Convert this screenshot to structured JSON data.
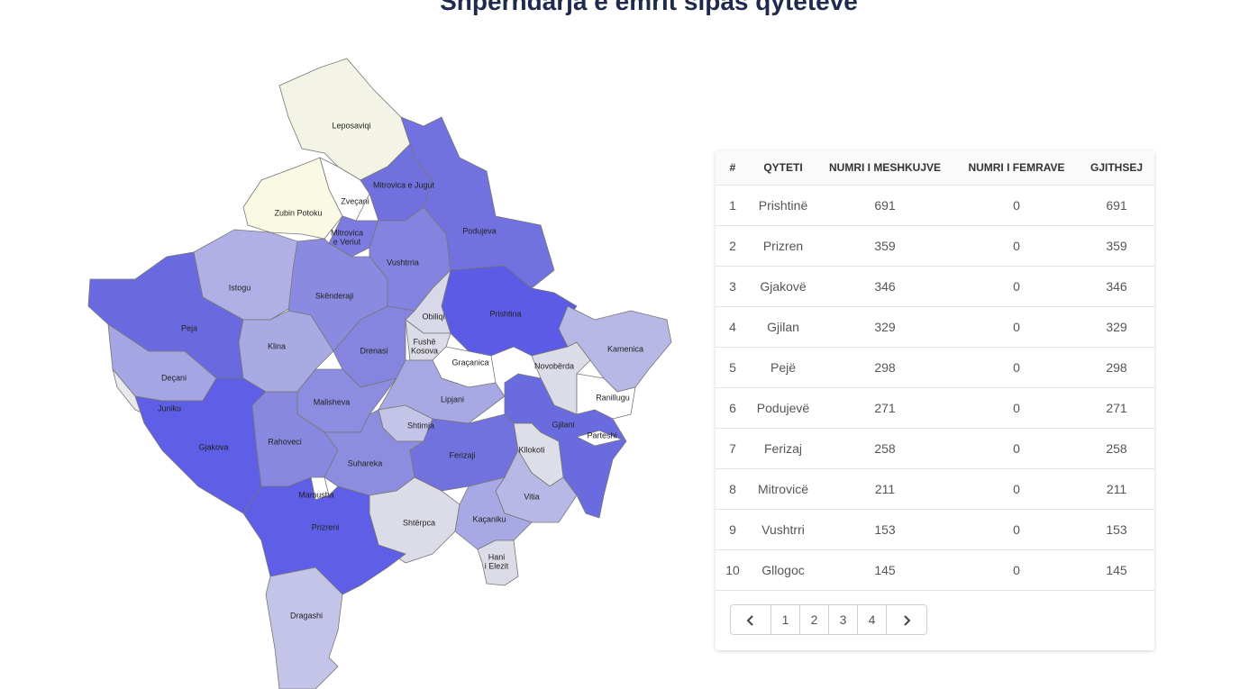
{
  "header": {
    "title": "Shpërndarja e emrit sipas qyteteve"
  },
  "map": {
    "regions": [
      {
        "label": [
          "Leposaviqi"
        ],
        "color": "#f3f4e6"
      },
      {
        "label": [
          "Zubin Potoku"
        ],
        "color": "#fafae4"
      },
      {
        "label": [
          "Zveçani"
        ],
        "color": "#ffffff"
      },
      {
        "label": [
          "Mitrovica e Jugut"
        ],
        "color": "#7070de"
      },
      {
        "label": [
          "Mitrovica",
          "e Veriut"
        ],
        "color": "#7b7be0"
      },
      {
        "label": [
          "Podujeva"
        ],
        "color": "#7171e0"
      },
      {
        "label": [
          "Istogu"
        ],
        "color": "#b0b0e6"
      },
      {
        "label": [
          "Skënderaji"
        ],
        "color": "#8a8ae0"
      },
      {
        "label": [
          "Vushtrria"
        ],
        "color": "#8383e0"
      },
      {
        "label": [
          "Prishtina"
        ],
        "color": "#5b5be6"
      },
      {
        "label": [
          "Obiliqi"
        ],
        "color": "#d8d8e8"
      },
      {
        "label": [
          "Peja"
        ],
        "color": "#6a6ae0"
      },
      {
        "label": [
          "Klina"
        ],
        "color": "#a9a9e4"
      },
      {
        "label": [
          "Drenasi"
        ],
        "color": "#8585e0"
      },
      {
        "label": [
          "Fushë",
          "Kosova"
        ],
        "color": "#dcdce8"
      },
      {
        "label": [
          "Graçanica"
        ],
        "color": "#ffffff"
      },
      {
        "label": [
          "Kamenica"
        ],
        "color": "#b8b8e6"
      },
      {
        "label": [
          "Novobërda"
        ],
        "color": "#dcdce8"
      },
      {
        "label": [
          "Deçani"
        ],
        "color": "#a5a5e4"
      },
      {
        "label": [
          "Juniku"
        ],
        "color": "#e8e8ee"
      },
      {
        "label": [
          "Malisheva"
        ],
        "color": "#8c8ce0"
      },
      {
        "label": [
          "Lipjani"
        ],
        "color": "#a8a8e4"
      },
      {
        "label": [
          "Ranillugu"
        ],
        "color": "#ffffff"
      },
      {
        "label": [
          "Gjilani"
        ],
        "color": "#6b6be0"
      },
      {
        "label": [
          "Parteshi"
        ],
        "color": "#ffffff"
      },
      {
        "label": [
          "Shtimja"
        ],
        "color": "#c4c4e8"
      },
      {
        "label": [
          "Gjakova"
        ],
        "color": "#5e5ee6"
      },
      {
        "label": [
          "Rahoveci"
        ],
        "color": "#8888e0"
      },
      {
        "label": [
          "Kllokoti"
        ],
        "color": "#dedee8"
      },
      {
        "label": [
          "Ferizaji"
        ],
        "color": "#7272de"
      },
      {
        "label": [
          "Suhareka"
        ],
        "color": "#8d8de0"
      },
      {
        "label": [
          "Vitia"
        ],
        "color": "#b8b8e6"
      },
      {
        "label": [
          "Mamusha"
        ],
        "color": "#ffffff"
      },
      {
        "label": [
          "Shtërpca"
        ],
        "color": "#dcdce8"
      },
      {
        "label": [
          "Kaçaniku"
        ],
        "color": "#a8a8e4"
      },
      {
        "label": [
          "Prizreni"
        ],
        "color": "#5e5ee6"
      },
      {
        "label": [
          "Hani",
          "i Elezit"
        ],
        "color": "#dcdce8"
      },
      {
        "label": [
          "Dragashi"
        ],
        "color": "#c4c4e8"
      }
    ]
  },
  "table": {
    "columns": [
      "#",
      "QYTETI",
      "NUMRI I MESHKUJVE",
      "NUMRI I FEMRAVE",
      "GJITHSEJ"
    ],
    "rows": [
      [
        1,
        "Prishtinë",
        691,
        0,
        691
      ],
      [
        2,
        "Prizren",
        359,
        0,
        359
      ],
      [
        3,
        "Gjakovë",
        346,
        0,
        346
      ],
      [
        4,
        "Gjilan",
        329,
        0,
        329
      ],
      [
        5,
        "Pejë",
        298,
        0,
        298
      ],
      [
        6,
        "Podujevë",
        271,
        0,
        271
      ],
      [
        7,
        "Ferizaj",
        258,
        0,
        258
      ],
      [
        8,
        "Mitrovicë",
        211,
        0,
        211
      ],
      [
        9,
        "Vushtrri",
        153,
        0,
        153
      ],
      [
        10,
        "Gllogoc",
        145,
        0,
        145
      ]
    ]
  },
  "pagination": {
    "pages": [
      1,
      2,
      3,
      4
    ]
  }
}
